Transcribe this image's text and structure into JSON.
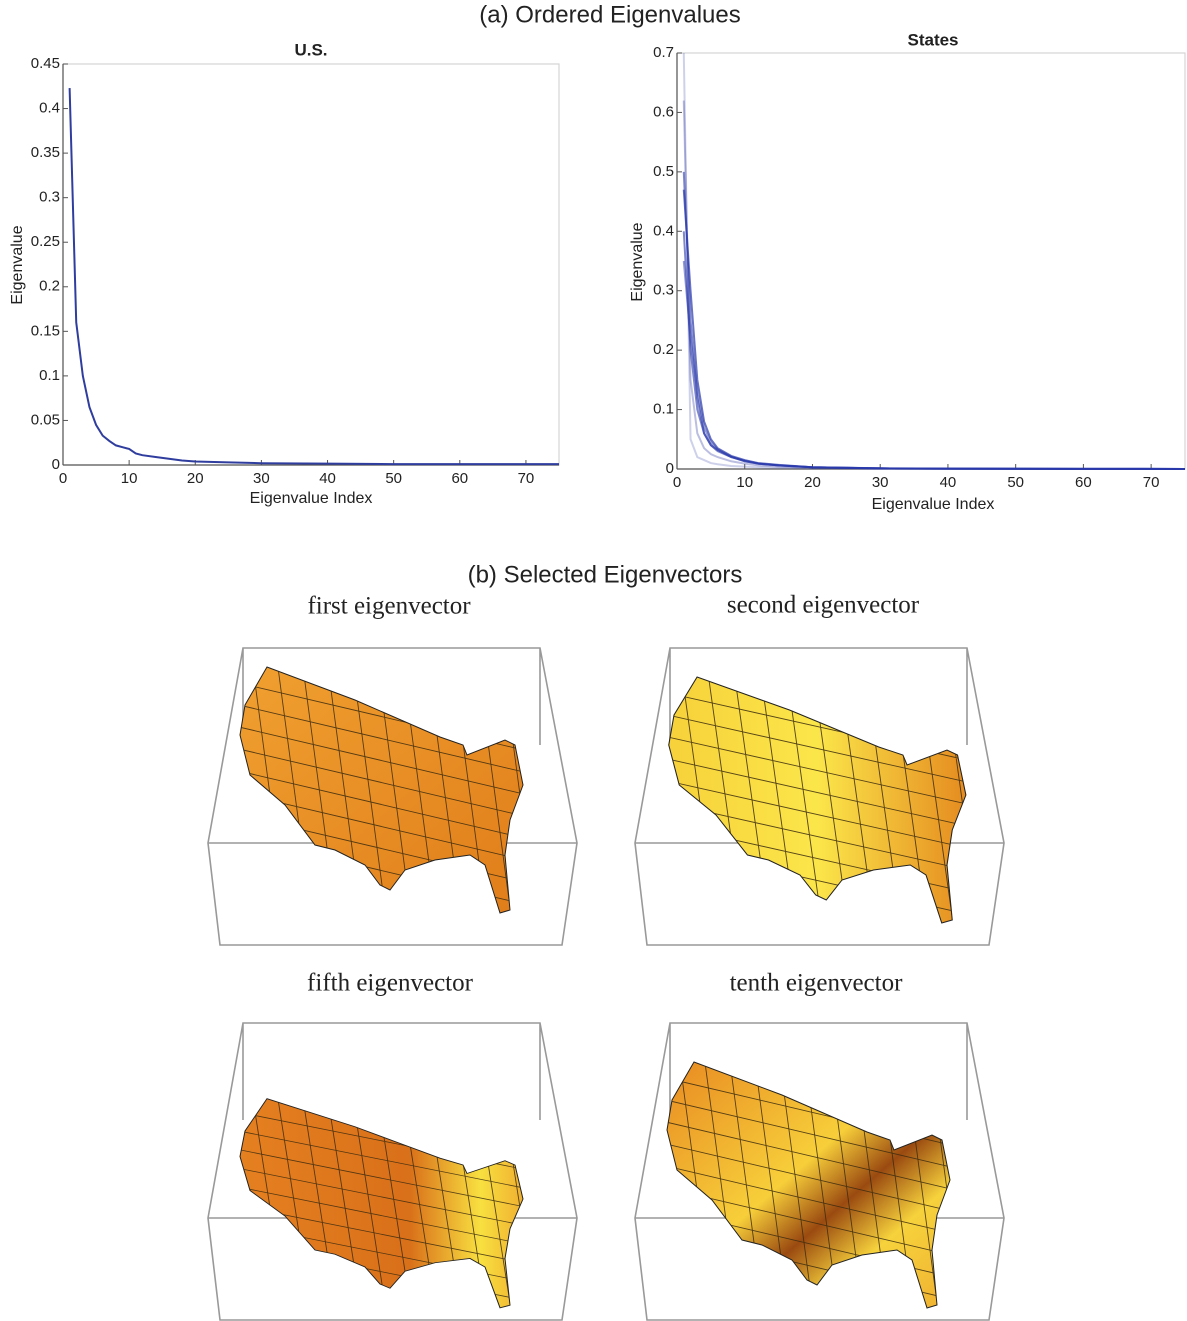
{
  "section_a_title": "(a) Ordered Eigenvalues",
  "section_b_title": "(b) Selected Eigenvectors",
  "eigenvector_panels": [
    {
      "title": "first eigenvector"
    },
    {
      "title": "second eigenvector"
    },
    {
      "title": "fifth eigenvector"
    },
    {
      "title": "tenth eigenvector"
    }
  ],
  "chart_data": [
    {
      "type": "line",
      "title": "U.S.",
      "x_label": "Eigenvalue Index",
      "y_label": "Eigenvalue",
      "x": [
        1,
        2,
        3,
        4,
        5,
        6,
        7,
        8,
        9,
        10,
        11,
        12,
        14,
        16,
        18,
        20,
        25,
        30,
        40,
        50,
        60,
        75
      ],
      "values": [
        0.423,
        0.16,
        0.1,
        0.065,
        0.045,
        0.033,
        0.027,
        0.022,
        0.02,
        0.018,
        0.013,
        0.011,
        0.009,
        0.007,
        0.005,
        0.004,
        0.003,
        0.002,
        0.0015,
        0.001,
        0.001,
        0.001
      ],
      "color": "#2f3d9e",
      "xlim": [
        0,
        75
      ],
      "ylim": [
        0,
        0.45
      ],
      "xticks": [
        0,
        10,
        20,
        30,
        40,
        50,
        60,
        70
      ],
      "yticks": [
        0,
        0.05,
        0.1,
        0.15,
        0.2,
        0.25,
        0.3,
        0.35,
        0.4,
        0.45
      ]
    },
    {
      "type": "line",
      "title": "States",
      "x_label": "Eigenvalue Index",
      "y_label": "Eigenvalue",
      "x": [
        1,
        2,
        3,
        4,
        5,
        6,
        8,
        10,
        12,
        15,
        20,
        30,
        40,
        50,
        60,
        75
      ],
      "series": [
        {
          "color": "rgba(60,70,170,0.25)",
          "values": [
            0.7,
            0.05,
            0.02,
            0.015,
            0.01,
            0.008,
            0.005,
            0.004,
            0.003,
            0.002,
            0.001,
            0.0005,
            0.0003,
            0.0002,
            0.0001,
            0.0001
          ]
        },
        {
          "color": "rgba(60,70,170,0.35)",
          "values": [
            0.62,
            0.15,
            0.06,
            0.035,
            0.025,
            0.02,
            0.013,
            0.009,
            0.006,
            0.004,
            0.002,
            0.001,
            0.0005,
            0.0003,
            0.0002,
            0.0001
          ]
        },
        {
          "color": "rgba(40,55,170,0.6)",
          "values": [
            0.5,
            0.25,
            0.12,
            0.06,
            0.04,
            0.03,
            0.02,
            0.013,
            0.009,
            0.006,
            0.003,
            0.001,
            0.0006,
            0.0004,
            0.0002,
            0.0001
          ]
        },
        {
          "color": "rgba(40,55,170,0.7)",
          "values": [
            0.47,
            0.3,
            0.15,
            0.08,
            0.05,
            0.035,
            0.022,
            0.015,
            0.01,
            0.007,
            0.003,
            0.0012,
            0.0006,
            0.0004,
            0.0002,
            0.0001
          ]
        },
        {
          "color": "rgba(40,55,170,0.6)",
          "values": [
            0.4,
            0.2,
            0.1,
            0.06,
            0.04,
            0.032,
            0.02,
            0.014,
            0.009,
            0.006,
            0.003,
            0.001,
            0.0006,
            0.0004,
            0.0002,
            0.0001
          ]
        },
        {
          "color": "rgba(40,55,170,0.5)",
          "values": [
            0.35,
            0.22,
            0.13,
            0.07,
            0.045,
            0.033,
            0.021,
            0.013,
            0.009,
            0.006,
            0.003,
            0.001,
            0.0006,
            0.0004,
            0.0002,
            0.0001
          ]
        }
      ],
      "xlim": [
        0,
        75
      ],
      "ylim": [
        0,
        0.7
      ],
      "xticks": [
        0,
        10,
        20,
        30,
        40,
        50,
        60,
        70
      ],
      "yticks": [
        0,
        0.1,
        0.2,
        0.3,
        0.4,
        0.5,
        0.6,
        0.7
      ]
    }
  ]
}
